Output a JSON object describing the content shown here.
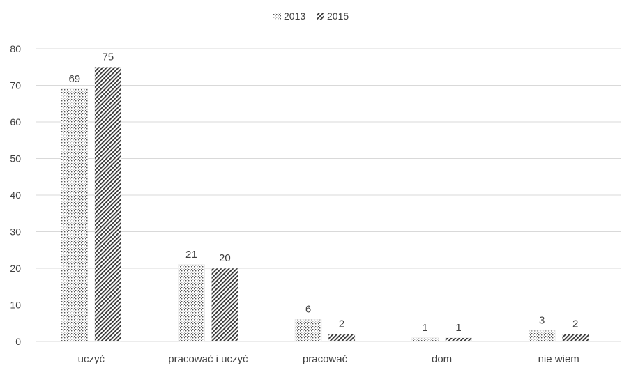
{
  "chart_data": {
    "type": "bar",
    "categories": [
      "uczyć",
      "pracować i uczyć",
      "pracować",
      "dom",
      "nie wiem"
    ],
    "series": [
      {
        "name": "2013",
        "values": [
          69,
          21,
          6,
          1,
          3
        ],
        "pattern": "dots"
      },
      {
        "name": "2015",
        "values": [
          75,
          20,
          2,
          1,
          2
        ],
        "pattern": "diagonal-stripes"
      }
    ],
    "ylim": [
      0,
      80
    ],
    "yticks": [
      0,
      10,
      20,
      30,
      40,
      50,
      60,
      70,
      80
    ],
    "grid": true,
    "legend": "top-center",
    "title": "",
    "xlabel": "",
    "ylabel": "",
    "colors": {
      "ink": "#404040",
      "grid": "#d9d9d9",
      "bar_fill": "#ffffff"
    }
  }
}
